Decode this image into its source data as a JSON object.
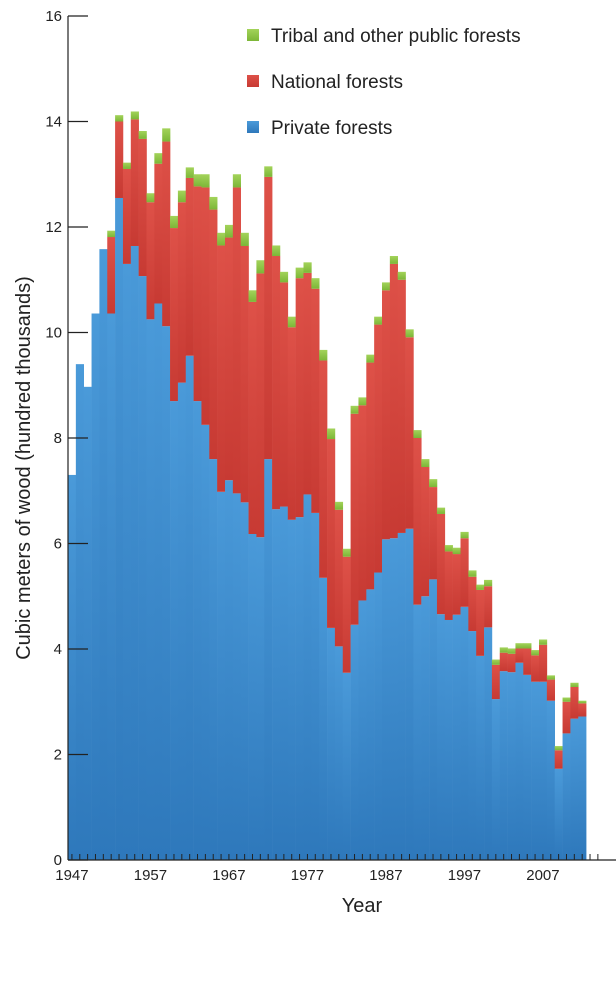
{
  "chart_data": {
    "type": "bar",
    "stacked": true,
    "xlabel": "Year",
    "ylabel": "Cubic meters of wood (hundred thousands)",
    "ylim": [
      0,
      16
    ],
    "yticks": [
      0,
      2,
      4,
      6,
      8,
      10,
      12,
      14,
      16
    ],
    "xticks": [
      1947,
      1957,
      1967,
      1977,
      1987,
      1997,
      2007
    ],
    "grid": false,
    "legend_position": "top-right",
    "x_start": 1947,
    "series": [
      {
        "name": "Private forests",
        "color": "#3f8fd2",
        "values": [
          7.3,
          9.4,
          8.97,
          10.36,
          11.58,
          10.36,
          12.55,
          11.3,
          11.64,
          11.07,
          10.25,
          10.55,
          10.12,
          8.7,
          9.05,
          9.56,
          8.7,
          8.25,
          7.6,
          6.98,
          7.2,
          6.95,
          6.78,
          6.18,
          6.12,
          7.6,
          6.65,
          6.7,
          6.45,
          6.5,
          6.93,
          6.58,
          5.35,
          4.4,
          4.05,
          3.55,
          4.46,
          4.92,
          5.13,
          5.45,
          6.08,
          6.1,
          6.2,
          6.28,
          4.84,
          5.0,
          5.32,
          4.66,
          4.55,
          4.65,
          4.8,
          4.34,
          3.87,
          4.41,
          3.05,
          3.58,
          3.56,
          3.74,
          3.51,
          3.38,
          3.38,
          3.02,
          1.73,
          2.4,
          2.68,
          2.72
        ]
      },
      {
        "name": "National forests",
        "color": "#d4443d",
        "values": [
          0,
          0,
          0,
          0,
          0,
          1.45,
          1.45,
          1.8,
          2.4,
          2.6,
          2.22,
          2.65,
          3.5,
          3.28,
          3.42,
          3.37,
          4.07,
          4.5,
          4.73,
          4.67,
          4.6,
          5.8,
          4.86,
          4.4,
          5.0,
          5.35,
          4.8,
          4.25,
          3.65,
          4.53,
          4.2,
          4.25,
          4.12,
          3.58,
          2.59,
          2.2,
          4.0,
          3.7,
          4.3,
          4.7,
          4.72,
          5.2,
          4.8,
          3.63,
          3.16,
          2.45,
          1.75,
          1.9,
          1.3,
          1.15,
          1.3,
          1.03,
          1.25,
          0.78,
          0.65,
          0.35,
          0.35,
          0.27,
          0.5,
          0.5,
          0.7,
          0.4,
          0.35,
          0.6,
          0.6,
          0.25
        ]
      },
      {
        "name": "Tribal and other public forests",
        "color": "#8cc641",
        "values": [
          0,
          0,
          0,
          0,
          0,
          0.12,
          0.12,
          0.12,
          0.15,
          0.15,
          0.17,
          0.2,
          0.25,
          0.23,
          0.22,
          0.2,
          0.23,
          0.25,
          0.24,
          0.24,
          0.24,
          0.25,
          0.25,
          0.22,
          0.25,
          0.2,
          0.2,
          0.2,
          0.2,
          0.2,
          0.2,
          0.2,
          0.2,
          0.2,
          0.15,
          0.15,
          0.15,
          0.15,
          0.15,
          0.15,
          0.15,
          0.15,
          0.15,
          0.15,
          0.15,
          0.15,
          0.15,
          0.12,
          0.12,
          0.12,
          0.12,
          0.12,
          0.1,
          0.12,
          0.1,
          0.1,
          0.1,
          0.1,
          0.1,
          0.1,
          0.1,
          0.08,
          0.08,
          0.08,
          0.08,
          0.05
        ]
      }
    ],
    "legend": [
      {
        "label": "Tribal and other public forests",
        "color": "#8cc641"
      },
      {
        "label": "National forests",
        "color": "#d4443d"
      },
      {
        "label": "Private forests",
        "color": "#3f8fd2"
      }
    ]
  }
}
